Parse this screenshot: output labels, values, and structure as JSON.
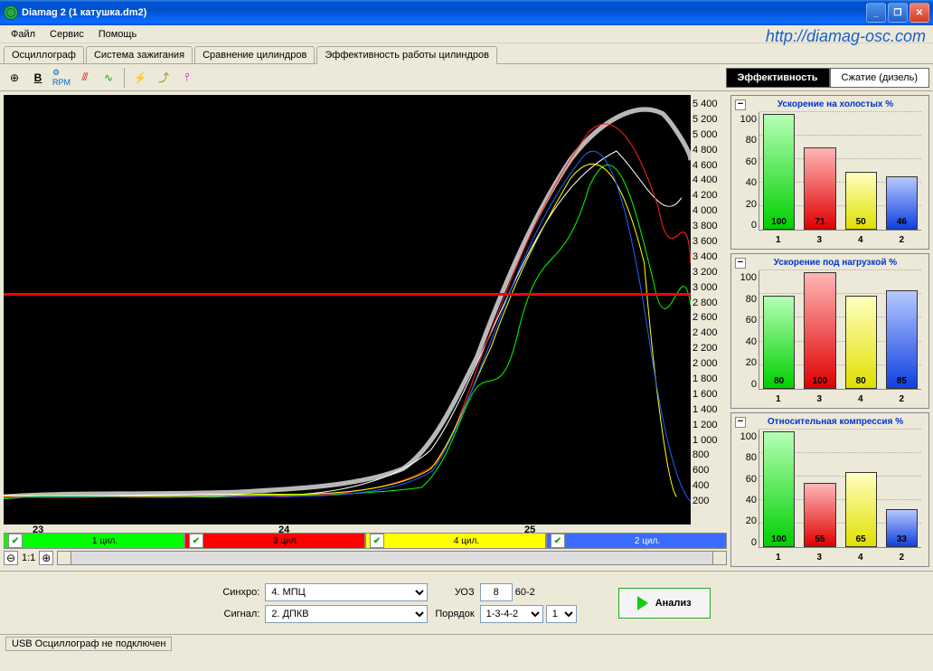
{
  "window": {
    "title": "Diamag 2 (1 катушка.dm2)"
  },
  "watermark": "http://diamag-osc.com",
  "menu": {
    "file": "Файл",
    "service": "Сервис",
    "help": "Помощь"
  },
  "tabs": {
    "items": [
      {
        "label": "Осциллограф"
      },
      {
        "label": "Система зажигания"
      },
      {
        "label": "Сравнение цилиндров"
      },
      {
        "label": "Эффективность работы цилиндров"
      }
    ],
    "active": 3
  },
  "mode_tabs": {
    "efficiency": "Эффективность",
    "compression": "Сжатие (дизель)"
  },
  "main_chart": {
    "type": "line",
    "background_color": "#000000",
    "xlim": [
      22.8,
      25.8
    ],
    "xticks": [
      "23",
      "24",
      "25"
    ],
    "ylim": [
      200,
      5400
    ],
    "ytick_step": 200,
    "yticks": [
      "5 400",
      "5 200",
      "5 000",
      "4 800",
      "4 600",
      "4 400",
      "4 200",
      "4 000",
      "3 800",
      "3 600",
      "3 400",
      "3 200",
      "3 000",
      "2 800",
      "2 600",
      "2 400",
      "2 200",
      "2 000",
      "1 800",
      "1 600",
      "1 400",
      "1 200",
      "1 000",
      "800",
      "600",
      "400",
      "200"
    ],
    "threshold_line": {
      "y": 3000,
      "color": "#ff0000",
      "width": 3
    },
    "series": [
      {
        "name": "aggregate",
        "color": "#b8b8b8",
        "stroke_width": 3
      },
      {
        "name": "cyl1",
        "color": "#00ff00",
        "stroke_width": 1
      },
      {
        "name": "cyl3",
        "color": "#ff0000",
        "stroke_width": 1
      },
      {
        "name": "cyl4",
        "color": "#ffff00",
        "stroke_width": 1
      },
      {
        "name": "cyl2",
        "color": "#0060ff",
        "stroke_width": 1
      },
      {
        "name": "white",
        "color": "#ffffff",
        "stroke_width": 1
      }
    ]
  },
  "cylinders": [
    {
      "label": "1 цил.",
      "color_bg": "#00ff00",
      "color_text": "#000000",
      "checked": true
    },
    {
      "label": "3 цил.",
      "color_bg": "#ff0000",
      "color_text": "#000000",
      "checked": true
    },
    {
      "label": "4 цил.",
      "color_bg": "#ffff00",
      "color_text": "#000000",
      "checked": true
    },
    {
      "label": "2 цил.",
      "color_bg": "#3a6cff",
      "color_text": "#ffffff",
      "checked": true
    }
  ],
  "zoom": {
    "ratio": "1:1"
  },
  "panels": [
    {
      "title": "Ускорение на холостых %",
      "type": "bar",
      "ylim": [
        0,
        100
      ],
      "ytick_step": 20,
      "yticks": [
        "100",
        "80",
        "60",
        "40",
        "20",
        "0"
      ],
      "categories": [
        "1",
        "3",
        "4",
        "2"
      ],
      "values": [
        100,
        71,
        50,
        46
      ],
      "bar_colors": [
        "#00ff00",
        "#ff0000",
        "#ffff00",
        "#3a6cff"
      ],
      "bar_gradients": [
        "linear-gradient(to bottom,#b6ffb6,#00d000)",
        "linear-gradient(to bottom,#ffb6b6,#e00000)",
        "linear-gradient(to bottom,#ffffc0,#e0e000)",
        "linear-gradient(to bottom,#b6c8ff,#1040e0)"
      ]
    },
    {
      "title": "Ускорение под нагрузкой %",
      "type": "bar",
      "ylim": [
        0,
        100
      ],
      "ytick_step": 20,
      "yticks": [
        "100",
        "80",
        "60",
        "40",
        "20",
        "0"
      ],
      "categories": [
        "1",
        "3",
        "4",
        "2"
      ],
      "values": [
        80,
        100,
        80,
        85
      ],
      "bar_colors": [
        "#00ff00",
        "#ff0000",
        "#ffff00",
        "#3a6cff"
      ],
      "bar_gradients": [
        "linear-gradient(to bottom,#b6ffb6,#00d000)",
        "linear-gradient(to bottom,#ffb6b6,#e00000)",
        "linear-gradient(to bottom,#ffffc0,#e0e000)",
        "linear-gradient(to bottom,#b6c8ff,#1040e0)"
      ]
    },
    {
      "title": "Относительная компрессия %",
      "type": "bar",
      "ylim": [
        0,
        100
      ],
      "ytick_step": 20,
      "yticks": [
        "100",
        "80",
        "60",
        "40",
        "20",
        "0"
      ],
      "categories": [
        "1",
        "3",
        "4",
        "2"
      ],
      "values": [
        100,
        55,
        65,
        33
      ],
      "bar_colors": [
        "#00ff00",
        "#ff0000",
        "#ffff00",
        "#3a6cff"
      ],
      "bar_gradients": [
        "linear-gradient(to bottom,#b6ffb6,#00d000)",
        "linear-gradient(to bottom,#ffb6b6,#e00000)",
        "linear-gradient(to bottom,#ffffc0,#e0e000)",
        "linear-gradient(to bottom,#b6c8ff,#1040e0)"
      ]
    }
  ],
  "controls": {
    "sync_label": "Синхро:",
    "sync_value": "4. МПЦ",
    "signal_label": "Сигнал:",
    "signal_value": "2. ДПКВ",
    "uoz_label": "УОЗ",
    "uoz_value": "8",
    "uoz_suffix": "60-2",
    "order_label": "Порядок",
    "order_value": "1-3-4-2",
    "order_n": "1",
    "analyze": "Анализ"
  },
  "status": {
    "text": "USB Осциллограф не подключен"
  }
}
